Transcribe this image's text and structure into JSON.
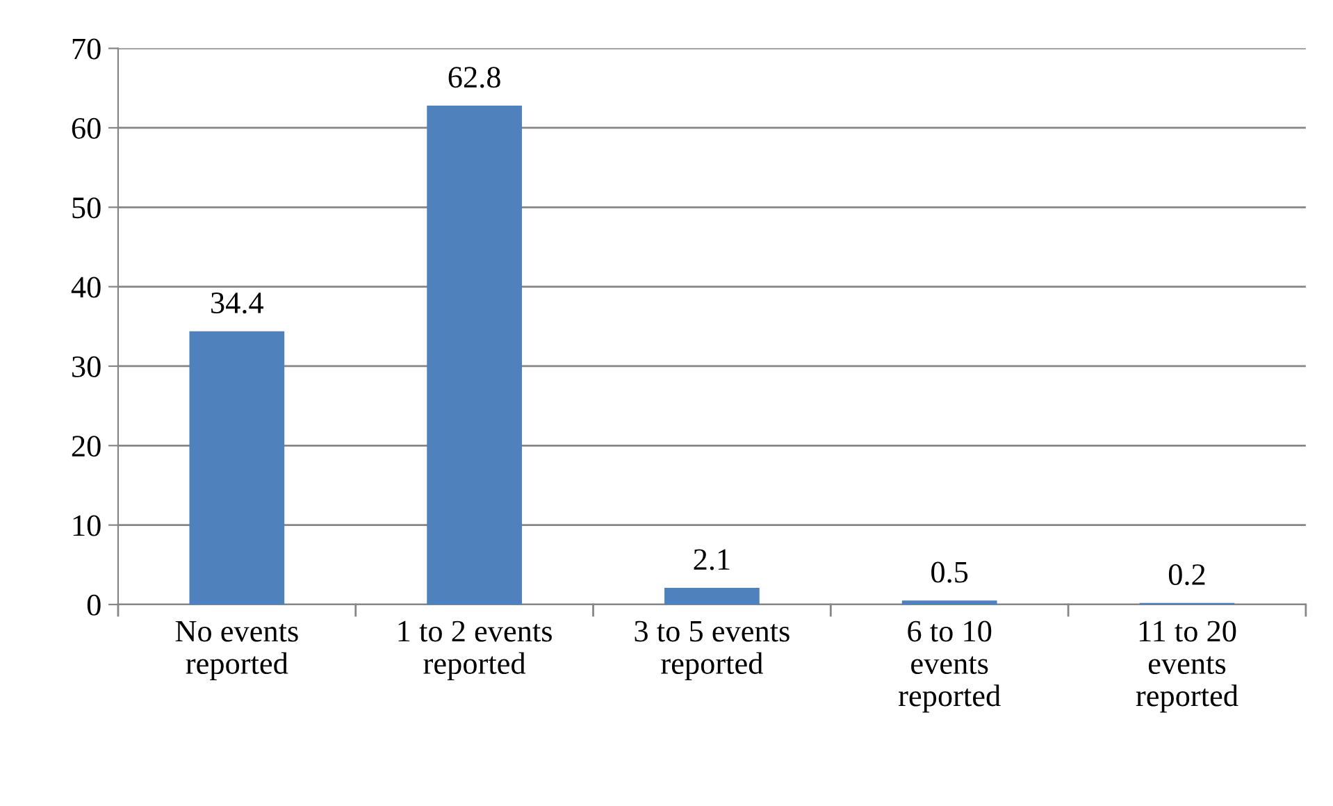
{
  "chart_data": {
    "type": "bar",
    "categories": [
      "No events\nreported",
      "1 to 2 events\nreported",
      "3 to 5 events\nreported",
      "6 to 10\nevents\nreported",
      "11 to 20\nevents\nreported"
    ],
    "values": [
      34.4,
      62.8,
      2.1,
      0.5,
      0.2
    ],
    "color": "#4f81bd",
    "ylim": [
      0,
      70
    ],
    "yticks": [
      0,
      10,
      20,
      30,
      40,
      50,
      60,
      70
    ],
    "grid": "y",
    "data_labels": true,
    "legend": false
  }
}
